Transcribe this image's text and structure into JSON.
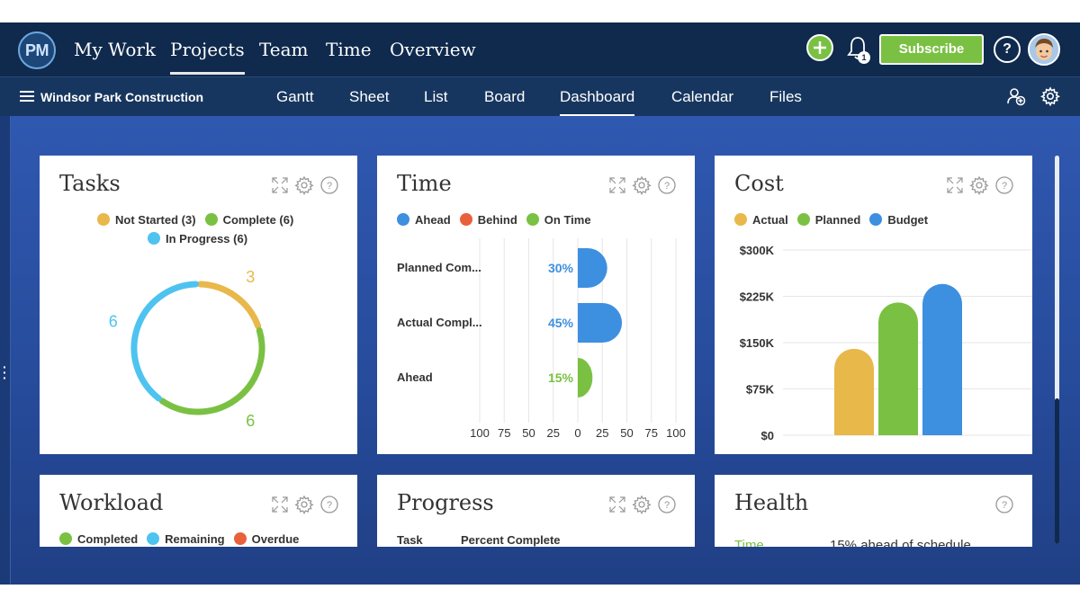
{
  "nav": {
    "logo_text": "PM",
    "items": [
      "My Work",
      "Projects",
      "Team",
      "Time",
      "Overview"
    ],
    "active": "Projects",
    "notification_count": "1",
    "subscribe_label": "Subscribe",
    "help_label": "?"
  },
  "project": {
    "name": "Windsor Park Construction",
    "views": [
      "Gantt",
      "Sheet",
      "List",
      "Board",
      "Dashboard",
      "Calendar",
      "Files"
    ],
    "active_view": "Dashboard"
  },
  "colors": {
    "not_started": "#e8b84a",
    "complete": "#7ac143",
    "in_progress": "#4ec3f0",
    "ahead": "#3d8fe0",
    "behind": "#e8613c",
    "on_time": "#7ac143",
    "actual": "#e8b84a",
    "planned": "#7ac143",
    "budget": "#3d8fe0"
  },
  "widgets": {
    "tasks": {
      "title": "Tasks",
      "legend": [
        "Not Started (3)",
        "Complete (6)",
        "In Progress (6)"
      ]
    },
    "time": {
      "title": "Time",
      "legend": [
        "Ahead",
        "Behind",
        "On Time"
      ]
    },
    "cost": {
      "title": "Cost",
      "legend": [
        "Actual",
        "Planned",
        "Budget"
      ]
    },
    "workload": {
      "title": "Workload",
      "legend": [
        "Completed",
        "Remaining",
        "Overdue"
      ]
    },
    "progress": {
      "title": "Progress",
      "col_task": "Task",
      "col_percent": "Percent Complete"
    },
    "health": {
      "title": "Health",
      "row_label": "Time",
      "row_value": "15% ahead of schedule"
    }
  },
  "chart_data": [
    {
      "type": "pie",
      "title": "Tasks",
      "categories": [
        "Not Started",
        "Complete",
        "In Progress"
      ],
      "values": [
        3,
        6,
        6
      ],
      "value_labels": [
        "3",
        "6",
        "6"
      ]
    },
    {
      "type": "bar",
      "title": "Time",
      "orientation": "horizontal",
      "categories": [
        "Planned Com...",
        "Actual Compl...",
        "Ahead"
      ],
      "values": [
        30,
        45,
        15
      ],
      "value_labels": [
        "30%",
        "45%",
        "15%"
      ],
      "series_colors": [
        "ahead",
        "ahead",
        "on_time"
      ],
      "xlim": [
        -100,
        100
      ],
      "xticks": [
        "100",
        "75",
        "50",
        "25",
        "0",
        "25",
        "50",
        "75",
        "100"
      ]
    },
    {
      "type": "bar",
      "title": "Cost",
      "categories": [
        "Actual",
        "Planned",
        "Budget"
      ],
      "values": [
        140000,
        215000,
        245000
      ],
      "ylim": [
        0,
        300000
      ],
      "yticks": [
        "$0",
        "$75K",
        "$150K",
        "$225K",
        "$300K"
      ]
    }
  ]
}
